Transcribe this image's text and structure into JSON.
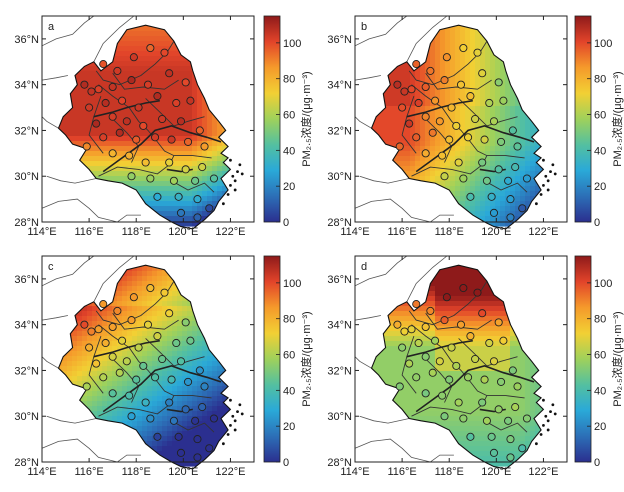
{
  "figure": {
    "panels": [
      {
        "label": "a",
        "colorbar_label": "PM₂.₅浓度/(μg·m⁻³)"
      },
      {
        "label": "b",
        "colorbar_label": "PM₂.₅浓度/(μg·m⁻³)"
      },
      {
        "label": "c",
        "colorbar_label": "PM₂.₅浓度/(μg·m⁻³)"
      },
      {
        "label": "d",
        "colorbar_label": "PM₂.₅浓度/(μg·m⁻³)"
      }
    ],
    "lon_ticks": [
      "114°E",
      "116°E",
      "118°E",
      "120°E",
      "122°E"
    ],
    "lat_ticks": [
      "28°N",
      "30°N",
      "32°N",
      "34°N",
      "36°N"
    ],
    "colorbar_ticks": [
      "0",
      "20",
      "40",
      "60",
      "80",
      "100"
    ],
    "colorbar_range": [
      0,
      115
    ],
    "colormap": [
      "#2b2f8f",
      "#2c6fb7",
      "#2aa9d8",
      "#54c0a0",
      "#9fd15b",
      "#f2d034",
      "#f59a2b",
      "#e2442a",
      "#8e1a1a"
    ]
  }
}
